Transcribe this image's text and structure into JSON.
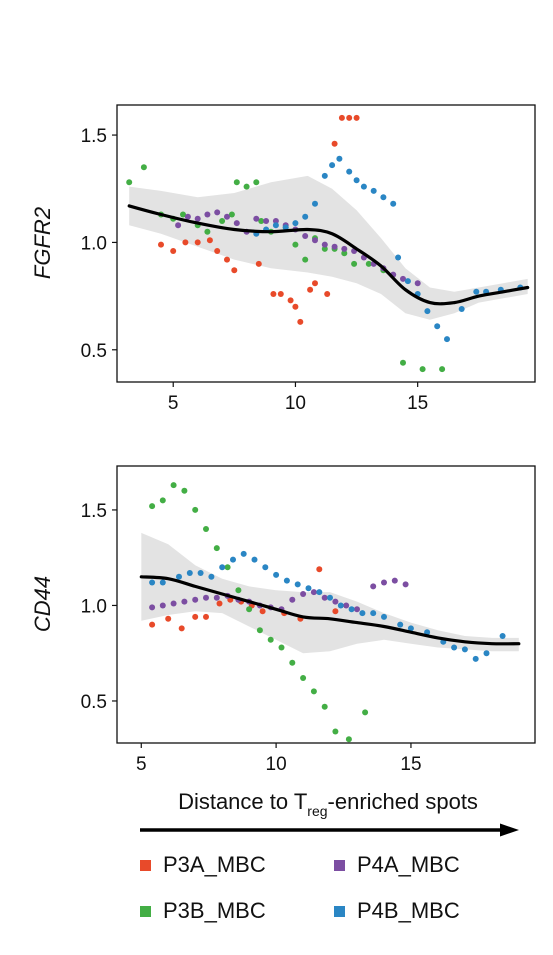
{
  "chart_data": [
    {
      "type": "scatter",
      "ylabel": "FGFR2",
      "xticks": [
        5,
        10,
        15
      ],
      "yticks": [
        "0.5",
        "1.0",
        "1.5"
      ],
      "xlim": [
        2.7,
        19.8
      ],
      "ylim": [
        0.35,
        1.64
      ],
      "trend": {
        "x": [
          3.2,
          4.5,
          6,
          7.5,
          9,
          10.5,
          11.5,
          12.5,
          13.5,
          14.5,
          15.5,
          16.5,
          17.5,
          18.5,
          19.5
        ],
        "y": [
          1.17,
          1.13,
          1.09,
          1.06,
          1.05,
          1.06,
          1.04,
          0.97,
          0.89,
          0.78,
          0.72,
          0.72,
          0.75,
          0.77,
          0.79
        ],
        "upper": [
          1.26,
          1.24,
          1.21,
          1.23,
          1.28,
          1.31,
          1.25,
          1.15,
          1.02,
          0.88,
          0.79,
          0.77,
          0.79,
          0.81,
          0.83
        ],
        "lower": [
          1.08,
          1.04,
          0.98,
          0.92,
          0.88,
          0.86,
          0.84,
          0.81,
          0.76,
          0.67,
          0.64,
          0.67,
          0.72,
          0.74,
          0.76
        ]
      },
      "series": [
        {
          "name": "P3A_MBC",
          "points": [
            [
              4.5,
              0.99
            ],
            [
              5.0,
              0.96
            ],
            [
              5.5,
              1.0
            ],
            [
              6.0,
              1.0
            ],
            [
              6.5,
              1.01
            ],
            [
              6.8,
              0.96
            ],
            [
              7.2,
              0.92
            ],
            [
              7.5,
              0.87
            ],
            [
              8.5,
              0.9
            ],
            [
              9.1,
              0.76
            ],
            [
              9.4,
              0.76
            ],
            [
              9.8,
              0.73
            ],
            [
              10.0,
              0.7
            ],
            [
              10.2,
              0.63
            ],
            [
              10.6,
              0.78
            ],
            [
              10.8,
              0.81
            ],
            [
              11.3,
              0.76
            ],
            [
              11.6,
              1.46
            ],
            [
              11.9,
              1.58
            ],
            [
              12.2,
              1.58
            ],
            [
              12.5,
              1.58
            ]
          ]
        },
        {
          "name": "P3B_MBC",
          "points": [
            [
              3.2,
              1.28
            ],
            [
              3.8,
              1.35
            ],
            [
              4.5,
              1.13
            ],
            [
              5.0,
              1.11
            ],
            [
              5.4,
              1.13
            ],
            [
              6.0,
              1.08
            ],
            [
              6.4,
              1.05
            ],
            [
              7.0,
              1.1
            ],
            [
              7.4,
              1.13
            ],
            [
              7.6,
              1.28
            ],
            [
              8.0,
              1.26
            ],
            [
              8.4,
              1.28
            ],
            [
              8.6,
              1.1
            ],
            [
              9.0,
              1.05
            ],
            [
              9.6,
              1.07
            ],
            [
              10.0,
              0.99
            ],
            [
              10.4,
              0.92
            ],
            [
              10.8,
              1.02
            ],
            [
              11.2,
              0.97
            ],
            [
              11.6,
              0.97
            ],
            [
              12.0,
              0.95
            ],
            [
              12.4,
              0.9
            ],
            [
              13.0,
              0.9
            ],
            [
              13.6,
              0.87
            ],
            [
              14.4,
              0.44
            ],
            [
              15.2,
              0.41
            ],
            [
              16.0,
              0.41
            ]
          ]
        },
        {
          "name": "P4A_MBC",
          "points": [
            [
              5.2,
              1.08
            ],
            [
              5.6,
              1.12
            ],
            [
              6.0,
              1.11
            ],
            [
              6.4,
              1.13
            ],
            [
              6.8,
              1.14
            ],
            [
              7.2,
              1.12
            ],
            [
              7.6,
              1.09
            ],
            [
              8.0,
              1.05
            ],
            [
              8.4,
              1.11
            ],
            [
              8.8,
              1.1
            ],
            [
              9.2,
              1.1
            ],
            [
              9.6,
              1.08
            ],
            [
              10.0,
              1.06
            ],
            [
              10.4,
              1.03
            ],
            [
              10.8,
              1.01
            ],
            [
              11.2,
              0.99
            ],
            [
              11.6,
              0.98
            ],
            [
              12.0,
              0.97
            ],
            [
              12.4,
              0.96
            ],
            [
              12.8,
              0.93
            ],
            [
              13.2,
              0.9
            ],
            [
              13.6,
              0.88
            ],
            [
              14.0,
              0.85
            ],
            [
              14.4,
              0.83
            ],
            [
              15.0,
              0.81
            ]
          ]
        },
        {
          "name": "P4B_MBC",
          "points": [
            [
              8.4,
              1.04
            ],
            [
              8.8,
              1.06
            ],
            [
              9.2,
              1.08
            ],
            [
              9.6,
              1.07
            ],
            [
              10.0,
              1.09
            ],
            [
              10.4,
              1.12
            ],
            [
              10.8,
              1.18
            ],
            [
              11.2,
              1.31
            ],
            [
              11.5,
              1.36
            ],
            [
              11.8,
              1.39
            ],
            [
              12.2,
              1.33
            ],
            [
              12.5,
              1.29
            ],
            [
              12.8,
              1.26
            ],
            [
              13.2,
              1.24
            ],
            [
              13.6,
              1.21
            ],
            [
              14.0,
              1.18
            ],
            [
              14.2,
              0.93
            ],
            [
              14.6,
              0.82
            ],
            [
              15.0,
              0.76
            ],
            [
              15.4,
              0.68
            ],
            [
              15.8,
              0.61
            ],
            [
              16.2,
              0.55
            ],
            [
              16.8,
              0.69
            ],
            [
              17.4,
              0.77
            ],
            [
              17.8,
              0.77
            ],
            [
              18.4,
              0.78
            ],
            [
              19.2,
              0.79
            ]
          ]
        }
      ]
    },
    {
      "type": "scatter",
      "ylabel": "CD44",
      "xticks": [
        5,
        10,
        15
      ],
      "yticks": [
        "0.5",
        "1.0",
        "1.5"
      ],
      "xlim": [
        4.1,
        19.6
      ],
      "ylim": [
        0.28,
        1.73
      ],
      "trend": {
        "x": [
          5.0,
          6.0,
          7.0,
          8.0,
          9.0,
          10.0,
          11.0,
          12.0,
          13.0,
          14.0,
          15.0,
          16.0,
          17.0,
          18.0,
          19.0
        ],
        "y": [
          1.15,
          1.14,
          1.1,
          1.06,
          1.02,
          0.98,
          0.94,
          0.93,
          0.91,
          0.89,
          0.86,
          0.83,
          0.81,
          0.8,
          0.8
        ],
        "upper": [
          1.38,
          1.32,
          1.21,
          1.14,
          1.1,
          1.08,
          1.07,
          1.07,
          1.02,
          0.96,
          0.91,
          0.87,
          0.84,
          0.83,
          0.83
        ],
        "lower": [
          0.92,
          0.95,
          0.97,
          0.96,
          0.89,
          0.82,
          0.75,
          0.76,
          0.8,
          0.82,
          0.8,
          0.78,
          0.77,
          0.76,
          0.76
        ]
      },
      "series": [
        {
          "name": "P3A_MBC",
          "points": [
            [
              5.4,
              0.9
            ],
            [
              6.0,
              0.93
            ],
            [
              6.5,
              0.88
            ],
            [
              7.0,
              0.94
            ],
            [
              7.4,
              0.94
            ],
            [
              7.9,
              1.01
            ],
            [
              8.3,
              1.03
            ],
            [
              8.7,
              1.02
            ],
            [
              9.1,
              1.0
            ],
            [
              9.5,
              0.97
            ],
            [
              10.3,
              0.96
            ],
            [
              10.9,
              0.93
            ],
            [
              11.6,
              1.19
            ],
            [
              12.2,
              0.97
            ]
          ]
        },
        {
          "name": "P3B_MBC",
          "points": [
            [
              5.4,
              1.52
            ],
            [
              5.8,
              1.55
            ],
            [
              6.2,
              1.63
            ],
            [
              6.6,
              1.6
            ],
            [
              7.0,
              1.5
            ],
            [
              7.4,
              1.4
            ],
            [
              7.8,
              1.3
            ],
            [
              8.2,
              1.2
            ],
            [
              8.6,
              1.08
            ],
            [
              9.0,
              0.98
            ],
            [
              9.4,
              0.87
            ],
            [
              9.8,
              0.82
            ],
            [
              10.2,
              0.78
            ],
            [
              10.6,
              0.7
            ],
            [
              11.0,
              0.62
            ],
            [
              11.4,
              0.55
            ],
            [
              11.8,
              0.47
            ],
            [
              12.2,
              0.34
            ],
            [
              12.7,
              0.3
            ],
            [
              13.3,
              0.44
            ]
          ]
        },
        {
          "name": "P4A_MBC",
          "points": [
            [
              5.4,
              0.99
            ],
            [
              5.8,
              1.0
            ],
            [
              6.2,
              1.01
            ],
            [
              6.6,
              1.02
            ],
            [
              7.0,
              1.03
            ],
            [
              7.4,
              1.04
            ],
            [
              7.8,
              1.04
            ],
            [
              8.2,
              1.05
            ],
            [
              8.6,
              1.03
            ],
            [
              9.0,
              1.02
            ],
            [
              9.4,
              1.0
            ],
            [
              9.8,
              0.99
            ],
            [
              10.2,
              0.98
            ],
            [
              10.6,
              1.03
            ],
            [
              11.0,
              1.06
            ],
            [
              11.4,
              1.07
            ],
            [
              11.8,
              1.04
            ],
            [
              12.2,
              1.02
            ],
            [
              12.6,
              1.0
            ],
            [
              13.0,
              0.98
            ],
            [
              13.6,
              1.1
            ],
            [
              14.0,
              1.12
            ],
            [
              14.4,
              1.13
            ],
            [
              14.8,
              1.11
            ]
          ]
        },
        {
          "name": "P4B_MBC",
          "points": [
            [
              5.4,
              1.12
            ],
            [
              5.8,
              1.12
            ],
            [
              6.4,
              1.15
            ],
            [
              6.8,
              1.17
            ],
            [
              7.2,
              1.17
            ],
            [
              7.6,
              1.15
            ],
            [
              8.0,
              1.2
            ],
            [
              8.4,
              1.24
            ],
            [
              8.8,
              1.27
            ],
            [
              9.2,
              1.24
            ],
            [
              9.6,
              1.2
            ],
            [
              10.0,
              1.16
            ],
            [
              10.4,
              1.13
            ],
            [
              10.8,
              1.11
            ],
            [
              11.2,
              1.09
            ],
            [
              11.6,
              1.07
            ],
            [
              12.0,
              1.04
            ],
            [
              12.4,
              1.0
            ],
            [
              12.8,
              0.98
            ],
            [
              13.2,
              0.96
            ],
            [
              13.6,
              0.96
            ],
            [
              14.0,
              0.94
            ],
            [
              14.6,
              0.9
            ],
            [
              15.0,
              0.88
            ],
            [
              15.6,
              0.86
            ],
            [
              16.2,
              0.81
            ],
            [
              16.6,
              0.78
            ],
            [
              17.0,
              0.77
            ],
            [
              17.4,
              0.72
            ],
            [
              17.8,
              0.75
            ],
            [
              18.4,
              0.84
            ]
          ]
        }
      ]
    }
  ],
  "xlabel": {
    "prefix": "Distance to T",
    "subscript": "reg",
    "suffix": "-enriched spots"
  },
  "legend": [
    {
      "name": "P3A_MBC",
      "color": "#e84a2a"
    },
    {
      "name": "P4A_MBC",
      "color": "#7c4ea2"
    },
    {
      "name": "P3B_MBC",
      "color": "#43ae45"
    },
    {
      "name": "P4B_MBC",
      "color": "#2a86c4"
    }
  ],
  "colors": {
    "P3A_MBC": "#e84a2a",
    "P3B_MBC": "#43ae45",
    "P4A_MBC": "#7c4ea2",
    "P4B_MBC": "#2a86c4",
    "trend": "#000000",
    "band": "#e3e3e3"
  }
}
